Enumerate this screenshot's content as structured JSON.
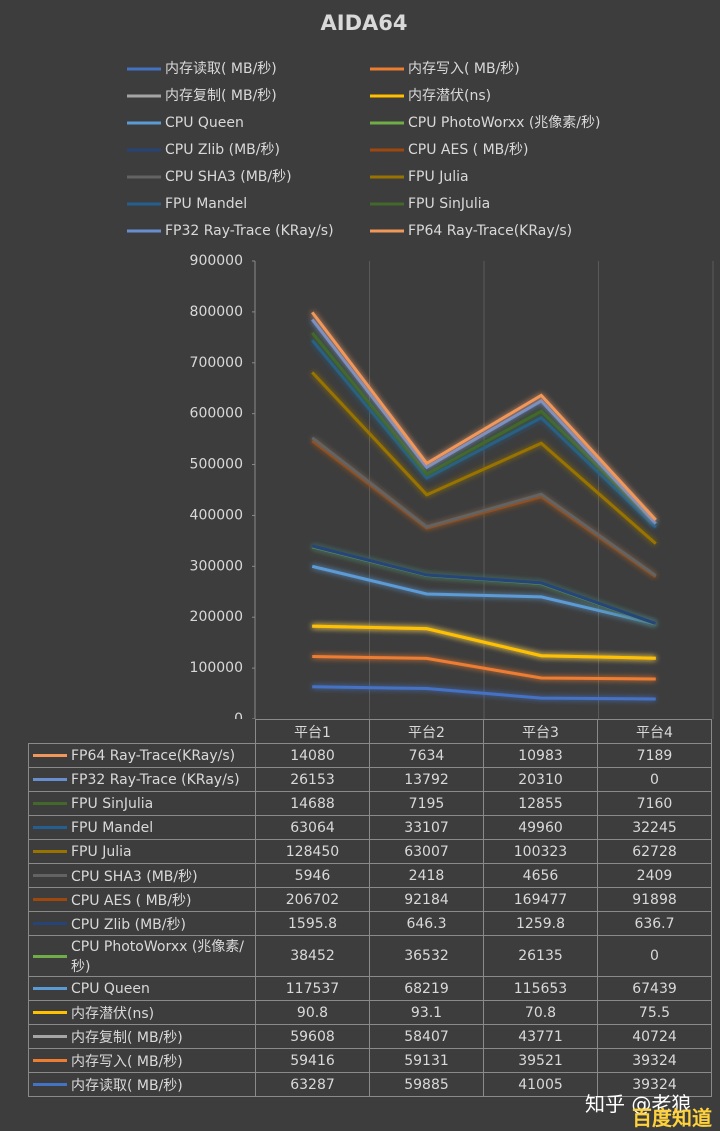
{
  "chart_data": {
    "type": "stacked-line",
    "title": "AIDA64",
    "categories": [
      "平台1",
      "平台2",
      "平台3",
      "平台4"
    ],
    "series": [
      {
        "name": "内存读取( MB/秒)",
        "color": "#4472c4",
        "values": [
          63287,
          59885,
          41005,
          39324
        ]
      },
      {
        "name": "内存写入( MB/秒)",
        "color": "#ed7d31",
        "values": [
          59416,
          59131,
          39521,
          39324
        ]
      },
      {
        "name": "内存复制( MB/秒)",
        "color": "#a5a5a5",
        "values": [
          59608,
          58407,
          43771,
          40724
        ]
      },
      {
        "name": "内存潜伏(ns)",
        "color": "#ffc000",
        "values": [
          90.8,
          93.1,
          70.8,
          75.5
        ]
      },
      {
        "name": "CPU Queen",
        "color": "#5b9bd5",
        "values": [
          117537,
          68219,
          115653,
          67439
        ]
      },
      {
        "name": "CPU PhotoWorxx (兆像素/秒)",
        "color": "#70ad47",
        "values": [
          38452,
          36532,
          26135,
          0
        ]
      },
      {
        "name": "CPU Zlib (MB/秒)",
        "color": "#264478",
        "values": [
          1595.8,
          646.3,
          1259.8,
          636.7
        ]
      },
      {
        "name": "CPU AES ( MB/秒)",
        "color": "#9e480e",
        "values": [
          206702,
          92184,
          169477,
          91898
        ]
      },
      {
        "name": "CPU SHA3 (MB/秒)",
        "color": "#636363",
        "values": [
          5946,
          2418,
          4656,
          2409
        ]
      },
      {
        "name": "FPU Julia",
        "color": "#997300",
        "values": [
          128450,
          63007,
          100323,
          62728
        ]
      },
      {
        "name": "FPU Mandel",
        "color": "#255e91",
        "values": [
          63064,
          33107,
          49960,
          32245
        ]
      },
      {
        "name": "FPU SinJulia",
        "color": "#43682b",
        "values": [
          14688,
          7195,
          12855,
          7160
        ]
      },
      {
        "name": "FP32 Ray-Trace (KRay/s)",
        "color": "#698ed0",
        "values": [
          26153,
          13792,
          20310,
          0
        ]
      },
      {
        "name": "FP64 Ray-Trace(KRay/s)",
        "color": "#f1975a",
        "values": [
          14080,
          7634,
          10983,
          7189
        ]
      }
    ],
    "ylim": [
      0,
      900000
    ],
    "yticks": [
      0,
      100000,
      200000,
      300000,
      400000,
      500000,
      600000,
      700000,
      800000,
      900000
    ]
  },
  "watermark": [
    "知乎 @老狼",
    "百度知道"
  ]
}
